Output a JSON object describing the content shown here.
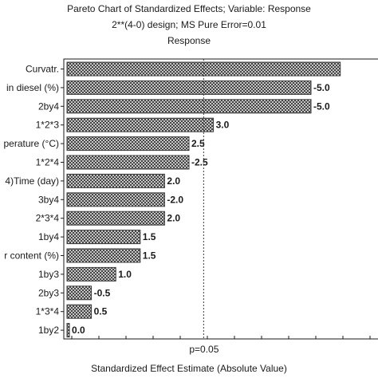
{
  "chart_data": {
    "type": "bar",
    "orientation": "horizontal",
    "title": "Pareto Chart of Standardized Effects; Variable: Response",
    "subtitle": "2**(4-0) design; MS Pure Error=0.01",
    "subtitle2": "Response",
    "xlabel": "Standardized Effect Estimate (Absolute Value)",
    "reference_label": "p=0.05",
    "reference_value": 2.8,
    "xlim": [
      0,
      5.5
    ],
    "categories": [
      "Curvatr.",
      "in diesel (%)",
      "2by4",
      "1*2*3",
      "perature (°C)",
      "1*2*4",
      "4)Time (day)",
      "3by4",
      "2*3*4",
      "1by4",
      "r content (%)",
      "1by3",
      "2by3",
      "1*3*4",
      "1by2"
    ],
    "values": [
      5.6,
      5.0,
      5.0,
      3.0,
      2.5,
      2.5,
      2.0,
      2.0,
      2.0,
      1.5,
      1.5,
      1.0,
      0.5,
      0.5,
      0.05
    ],
    "value_labels": [
      "",
      "-5.0",
      "-5.0",
      "3.0",
      "2.5",
      "-2.5",
      "2.0",
      "-2.0",
      "2.0",
      "1.5",
      "1.5",
      "1.0",
      "-0.5",
      "0.5",
      "0.0"
    ],
    "bar_pattern": "crosshatch",
    "bar_color": "#3a3a3a"
  }
}
